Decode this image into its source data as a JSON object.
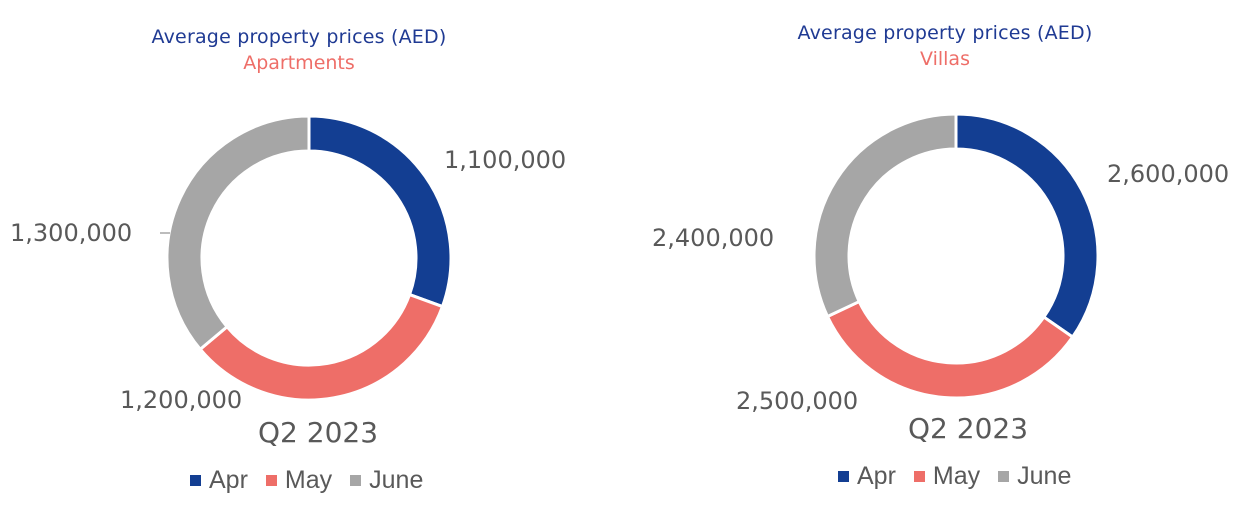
{
  "colors": {
    "title": "#1f3a93",
    "subtitle": "#ee6e68",
    "Apr": "#133e92",
    "May": "#ee6e68",
    "June": "#a6a6a6"
  },
  "chart_data": [
    {
      "type": "pie",
      "title": "Average property prices (AED)",
      "subtitle": "Apartments",
      "center_label": "Q2 2023",
      "categories": [
        "Apr",
        "May",
        "June"
      ],
      "values": [
        1100000,
        1200000,
        1300000
      ],
      "value_labels": [
        "1,100,000",
        "1,200,000",
        "1,300,000"
      ],
      "legend": "bottom"
    },
    {
      "type": "pie",
      "title": "Average property prices (AED)",
      "subtitle": "Villas",
      "center_label": "Q2 2023",
      "categories": [
        "Apr",
        "May",
        "June"
      ],
      "values": [
        2600000,
        2500000,
        2400000
      ],
      "value_labels": [
        "2,600,000",
        "2,500,000",
        "2,400,000"
      ],
      "legend": "bottom"
    }
  ]
}
